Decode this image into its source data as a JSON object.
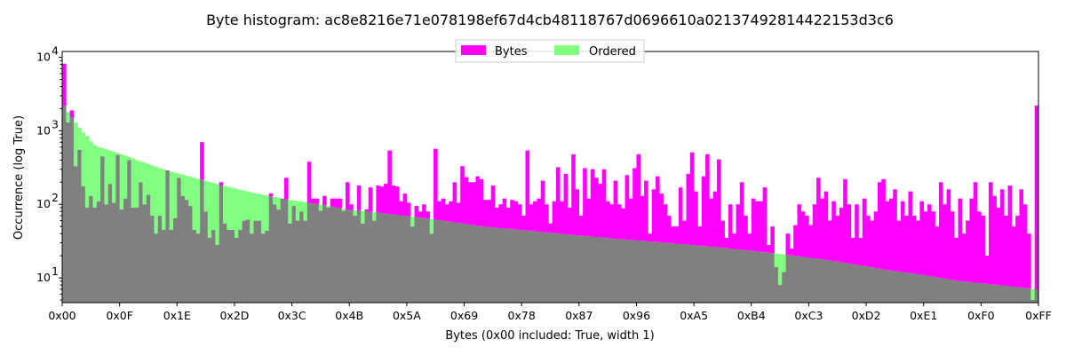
{
  "chart_data": {
    "type": "bar",
    "title": "Byte histogram: ac8e8216e71e078198ef67d4cb48118767d0696610a02137492814422153d3c6",
    "xlabel": "Bytes (0x00 included: True, width 1)",
    "ylabel": "Occurrence (log True)",
    "yscale": "log",
    "ylim": [
      4.6,
      12000
    ],
    "xlim": [
      0,
      255
    ],
    "x_ticks": [
      "0x00",
      "0x0F",
      "0x1E",
      "0x2D",
      "0x3C",
      "0x4B",
      "0x5A",
      "0x69",
      "0x78",
      "0x87",
      "0x96",
      "0xA5",
      "0xB4",
      "0xC3",
      "0xD2",
      "0xE1",
      "0xF0",
      "0xFF"
    ],
    "y_ticks": [
      {
        "value": 10,
        "base": "10",
        "exp": "1"
      },
      {
        "value": 100,
        "base": "10",
        "exp": "2"
      },
      {
        "value": 1000,
        "base": "10",
        "exp": "3"
      },
      {
        "value": 10000,
        "base": "10",
        "exp": "4"
      }
    ],
    "legend": {
      "placement": "upper-center",
      "columns": 2
    },
    "colors": {
      "bytes": "#ff00ff",
      "ordered": "#80ff80",
      "overlap": "#808080"
    },
    "series": [
      {
        "name": "Bytes",
        "values": [
          8200,
          1300,
          1900,
          330,
          550,
          175,
          90,
          130,
          90,
          110,
          450,
          100,
          190,
          105,
          470,
          85,
          120,
          400,
          90,
          90,
          200,
          100,
          135,
          70,
          40,
          70,
          45,
          290,
          45,
          65,
          230,
          130,
          115,
          95,
          45,
          40,
          700,
          80,
          35,
          45,
          28,
          200,
          55,
          45,
          45,
          35,
          45,
          60,
          62,
          40,
          60,
          60,
          40,
          44,
          140,
          100,
          85,
          120,
          230,
          55,
          95,
          60,
          80,
          60,
          380,
          120,
          120,
          82,
          130,
          90,
          120,
          120,
          120,
          82,
          200,
          100,
          70,
          180,
          55,
          85,
          170,
          60,
          180,
          175,
          190,
          540,
          180,
          175,
          110,
          140,
          105,
          50,
          95,
          80,
          100,
          80,
          40,
          570,
          110,
          120,
          100,
          110,
          200,
          105,
          330,
          235,
          200,
          200,
          240,
          220,
          115,
          115,
          180,
          90,
          100,
          120,
          90,
          115,
          110,
          100,
          70,
          540,
          100,
          110,
          120,
          210,
          100,
          55,
          110,
          320,
          110,
          260,
          90,
          480,
          160,
          70,
          310,
          120,
          300,
          230,
          190,
          300,
          110,
          100,
          210,
          100,
          88,
          250,
          120,
          310,
          480,
          130,
          210,
          40,
          160,
          240,
          140,
          100,
          70,
          50,
          50,
          170,
          60,
          260,
          510,
          150,
          50,
          240,
          480,
          120,
          150,
          410,
          60,
          35,
          100,
          40,
          100,
          200,
          70,
          40,
          120,
          110,
          110,
          170,
          28,
          50,
          14,
          8,
          12,
          40,
          25,
          52,
          100,
          80,
          70,
          52,
          100,
          230,
          120,
          150,
          60,
          110,
          70,
          90,
          220,
          100,
          35,
          100,
          35,
          120,
          70,
          60,
          80,
          200,
          220,
          110,
          120,
          160,
          60,
          110,
          70,
          150,
          70,
          60,
          110,
          80,
          100,
          80,
          50,
          200,
          100,
          160,
          80,
          35,
          120,
          40,
          60,
          120,
          200,
          80,
          70,
          20,
          200,
          130,
          90,
          160,
          70,
          180,
          50,
          70,
          160,
          100,
          40,
          5,
          2200
        ]
      },
      {
        "name": "Ordered",
        "values": [
          2200,
          1800,
          1500,
          1300,
          1100,
          950,
          850,
          720,
          640,
          600,
          580,
          560,
          540,
          520,
          500,
          480,
          460,
          440,
          420,
          400,
          385,
          370,
          355,
          340,
          325,
          310,
          300,
          290,
          280,
          270,
          262,
          254,
          246,
          238,
          230,
          222,
          215,
          208,
          201,
          195,
          189,
          183,
          178,
          173,
          168,
          163,
          158,
          154,
          150,
          146,
          142,
          138,
          135,
          132,
          129,
          126,
          123,
          120,
          117,
          115,
          113,
          111,
          109,
          107,
          105,
          103,
          101,
          99,
          97,
          95,
          93,
          91,
          89,
          87,
          85,
          84,
          83,
          82,
          81,
          80,
          79,
          78,
          77,
          76,
          75,
          74,
          73,
          72,
          71,
          70,
          69,
          68,
          67,
          66,
          65,
          64,
          63,
          62,
          61,
          60,
          59,
          58,
          57,
          56,
          55,
          54,
          53,
          52,
          51,
          50,
          49.5,
          49,
          48.5,
          48,
          47.5,
          47,
          46.5,
          46,
          45.5,
          45,
          44.5,
          44,
          43.5,
          43,
          42.5,
          42,
          41.5,
          41,
          40.5,
          40,
          39.6,
          39.2,
          38.8,
          38.4,
          38,
          37.6,
          37.2,
          36.8,
          36.4,
          36,
          35.6,
          35.2,
          34.8,
          34.4,
          34,
          33.7,
          33.4,
          33.1,
          32.8,
          32.5,
          32.2,
          31.9,
          31.6,
          31.3,
          31,
          30.7,
          30.4,
          30.1,
          29.8,
          29.5,
          29.2,
          28.9,
          28.6,
          28.3,
          28,
          27.7,
          27.4,
          27.1,
          26.8,
          26.5,
          26.2,
          25.9,
          25.6,
          25.3,
          25,
          24.7,
          24.4,
          24.1,
          23.8,
          23.5,
          23.2,
          22.9,
          22.6,
          22.3,
          22,
          21.7,
          21.4,
          21.1,
          20.8,
          20.5,
          20.2,
          19.9,
          19.6,
          19.3,
          19,
          18.7,
          18.4,
          18.1,
          17.8,
          17.5,
          17.2,
          16.9,
          16.6,
          16.3,
          16,
          15.7,
          15.4,
          15.1,
          14.8,
          14.5,
          14.2,
          13.9,
          13.6,
          13.3,
          13,
          12.8,
          12.6,
          12.4,
          12.2,
          12,
          11.8,
          11.6,
          11.4,
          11.2,
          11,
          10.8,
          10.6,
          10.4,
          10.2,
          10,
          9.8,
          9.6,
          9.4,
          9.2,
          9,
          8.9,
          8.8,
          8.7,
          8.6,
          8.5,
          8.4,
          8.3,
          8.2,
          8.1,
          8,
          7.9,
          7.8,
          7.7,
          7.6,
          7.5,
          7.4,
          7.3,
          7.2,
          7.1,
          7
        ]
      }
    ]
  }
}
